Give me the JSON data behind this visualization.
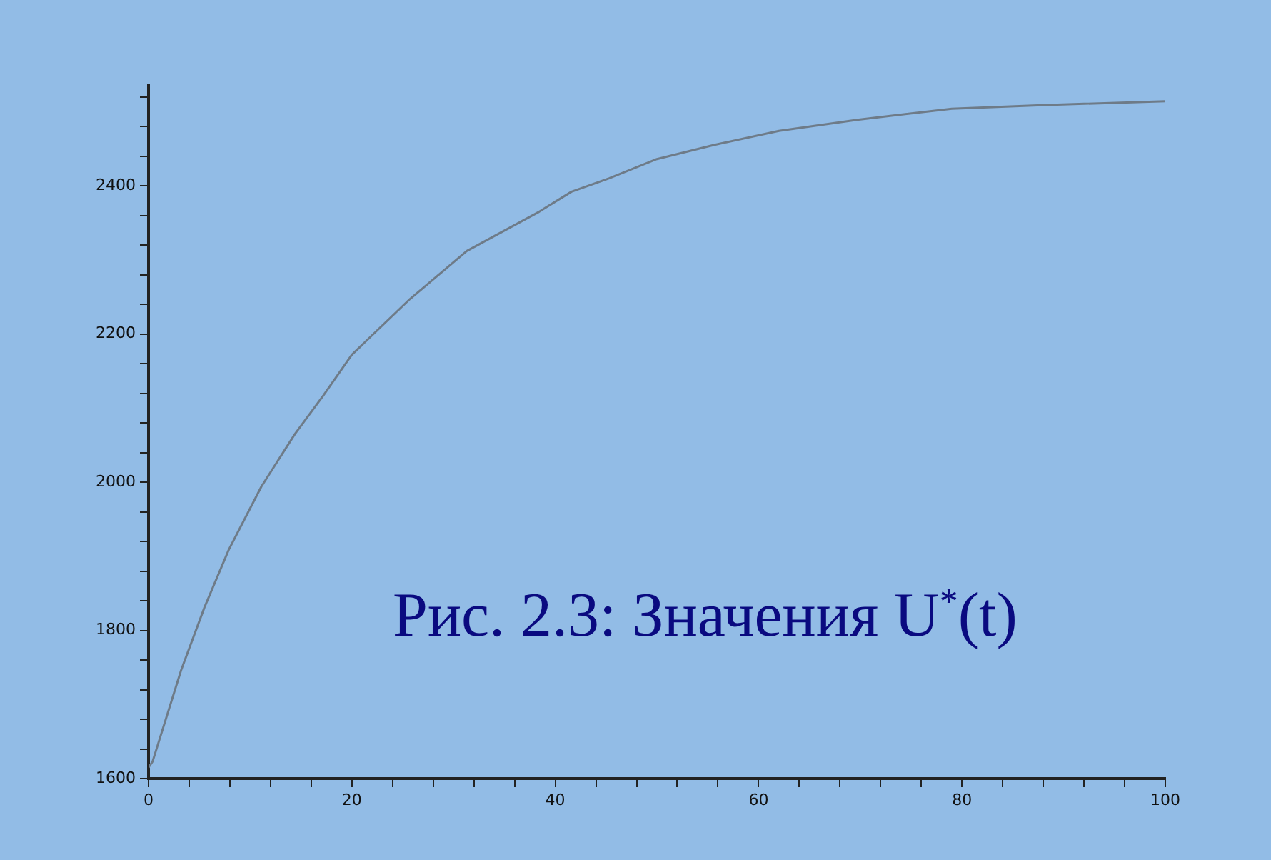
{
  "chart_data": {
    "type": "line",
    "x": [
      0,
      0.4,
      3.2,
      5.5,
      7.9,
      11.1,
      14.4,
      17.2,
      20,
      25.7,
      31.3,
      38.3,
      41.6,
      45.3,
      50,
      55.6,
      62,
      69.7,
      79,
      88.3,
      100
    ],
    "series": [
      {
        "color": "#6e7b88",
        "values": [
          1615,
          1623,
          1746,
          1831,
          1909,
          1994,
          2065,
          2117,
          2172,
          2247,
          2312,
          2364,
          2392,
          2410,
          2436,
          2455,
          2474,
          2489,
          2504,
          2509,
          2514
        ]
      }
    ],
    "xlim": [
      0,
      100
    ],
    "xticks": [
      0,
      {
        "value": 4,
        "label": null
      },
      {
        "value": 8,
        "label": null
      },
      {
        "value": 12,
        "label": null
      },
      {
        "value": 16,
        "label": null
      },
      20,
      {
        "value": 24,
        "label": null
      },
      {
        "value": 28,
        "label": null
      },
      {
        "value": 32,
        "label": null
      },
      {
        "value": 36,
        "label": null
      },
      40,
      {
        "value": 44,
        "label": null
      },
      {
        "value": 48,
        "label": null
      },
      {
        "value": 52,
        "label": null
      },
      {
        "value": 56,
        "label": null
      },
      60,
      {
        "value": 64,
        "label": null
      },
      {
        "value": 68,
        "label": null
      },
      {
        "value": 72,
        "label": null
      },
      {
        "value": 76,
        "label": null
      },
      80,
      {
        "value": 84,
        "label": null
      },
      {
        "value": 88,
        "label": null
      },
      {
        "value": 92,
        "label": null
      },
      {
        "value": 96,
        "label": null
      },
      100
    ],
    "ylim": [
      1600,
      2535
    ],
    "yticks": [
      1600,
      {
        "value": 1640,
        "label": null
      },
      {
        "value": 1680,
        "label": null
      },
      {
        "value": 1720,
        "label": null
      },
      {
        "value": 1760,
        "label": null
      },
      1800,
      {
        "value": 1840,
        "label": null
      },
      {
        "value": 1880,
        "label": null
      },
      {
        "value": 1920,
        "label": null
      },
      {
        "value": 1960,
        "label": null
      },
      2000,
      {
        "value": 2040,
        "label": null
      },
      {
        "value": 2080,
        "label": null
      },
      {
        "value": 2120,
        "label": null
      },
      {
        "value": 2160,
        "label": null
      },
      2200,
      {
        "value": 2240,
        "label": null
      },
      {
        "value": 2280,
        "label": null
      },
      {
        "value": 2320,
        "label": null
      },
      {
        "value": 2360,
        "label": null
      },
      2400,
      {
        "value": 2440,
        "label": null
      },
      {
        "value": 2480,
        "label": null
      },
      {
        "value": 2520,
        "label": null
      }
    ],
    "grid": false,
    "legend": false,
    "marker": "none",
    "line_style": "solid",
    "annotations": [
      "Рис. 2.3: Значения U$^{*}$(t)"
    ]
  }
}
